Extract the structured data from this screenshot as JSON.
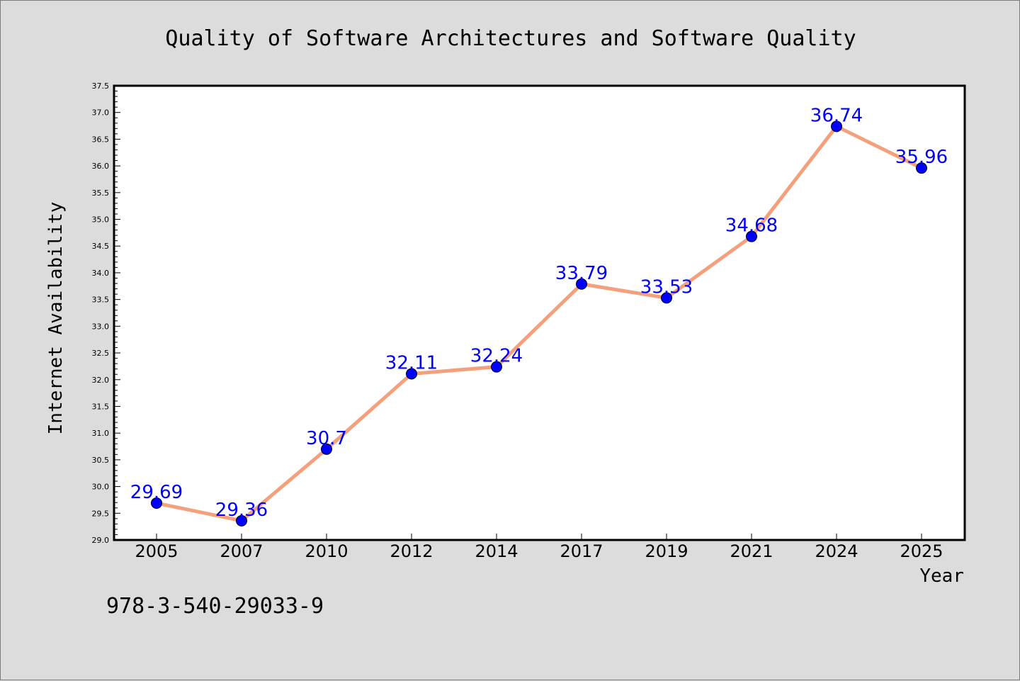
{
  "chart_data": {
    "type": "line",
    "title": "Quality of Software Architectures and Software Quality",
    "xlabel": "Year",
    "ylabel": "Internet Availability",
    "categories": [
      "2005",
      "2007",
      "2010",
      "2012",
      "2014",
      "2017",
      "2019",
      "2021",
      "2024",
      "2025"
    ],
    "series": [
      {
        "values": [
          29.69,
          29.36,
          30.7,
          32.11,
          32.24,
          33.79,
          33.53,
          34.68,
          36.74,
          35.96
        ]
      }
    ],
    "data_labels": [
      "29.69",
      "29.36",
      "30.7",
      "32.11",
      "32.24",
      "33.79",
      "33.53",
      "34.68",
      "36.74",
      "35.96"
    ],
    "ylim": [
      29.0,
      37.5
    ],
    "yticks": [
      "29.0",
      "29.5",
      "30.0",
      "30.5",
      "31.0",
      "31.5",
      "32.0",
      "32.5",
      "33.0",
      "33.5",
      "34.0",
      "34.5",
      "35.0",
      "35.5",
      "36.0",
      "36.5",
      "37.0",
      "37.5"
    ],
    "grid": false,
    "legend": false,
    "colors": {
      "line": "#f4a07c",
      "marker": "#0000ff",
      "data_label": "#0000ff",
      "background": "#dcdcdc",
      "plot_background": "#ffffff"
    }
  },
  "footnote": "978-3-540-29033-9"
}
